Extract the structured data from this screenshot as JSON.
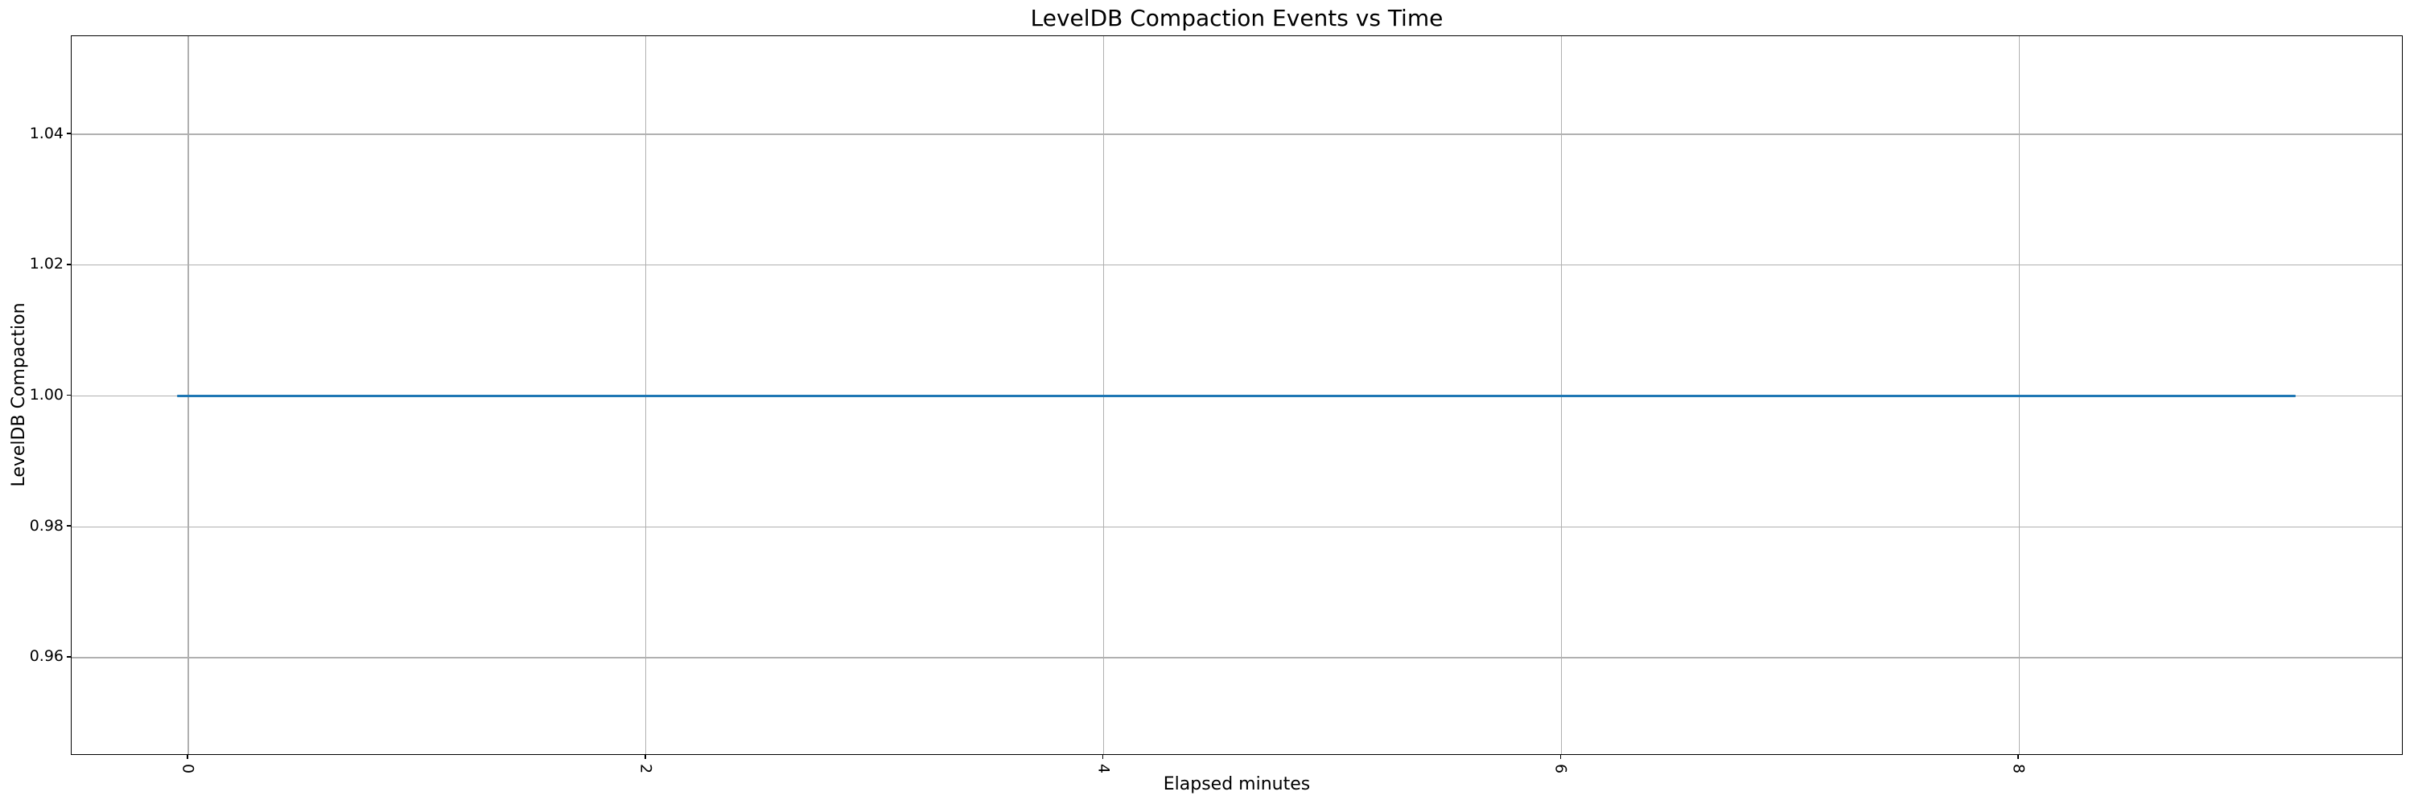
{
  "chart_data": {
    "type": "line",
    "title": "LevelDB Compaction Events vs Time",
    "xlabel": "Elapsed minutes",
    "ylabel": "LevelDB Compaction",
    "xlim": [
      -0.51,
      9.68
    ],
    "ylim": [
      0.945,
      1.055
    ],
    "xticks": [
      0,
      2,
      4,
      6,
      8
    ],
    "xtick_labels": [
      "0",
      "2",
      "4",
      "6",
      "8"
    ],
    "xtick_rotation_deg": 90,
    "yticks": [
      0.96,
      0.98,
      1.0,
      1.02,
      1.04
    ],
    "ytick_labels": [
      "0.96",
      "0.98",
      "1.00",
      "1.02",
      "1.04"
    ],
    "grid": true,
    "legend": false,
    "series": [
      {
        "x": [
          -0.05,
          9.21
        ],
        "y": [
          1.0,
          1.0
        ],
        "color": "#1f77b4"
      }
    ],
    "colors": {
      "line": "#1f77b4",
      "grid": "#b0b0b0",
      "spine": "#000000",
      "background": "#ffffff",
      "text": "#000000"
    }
  }
}
